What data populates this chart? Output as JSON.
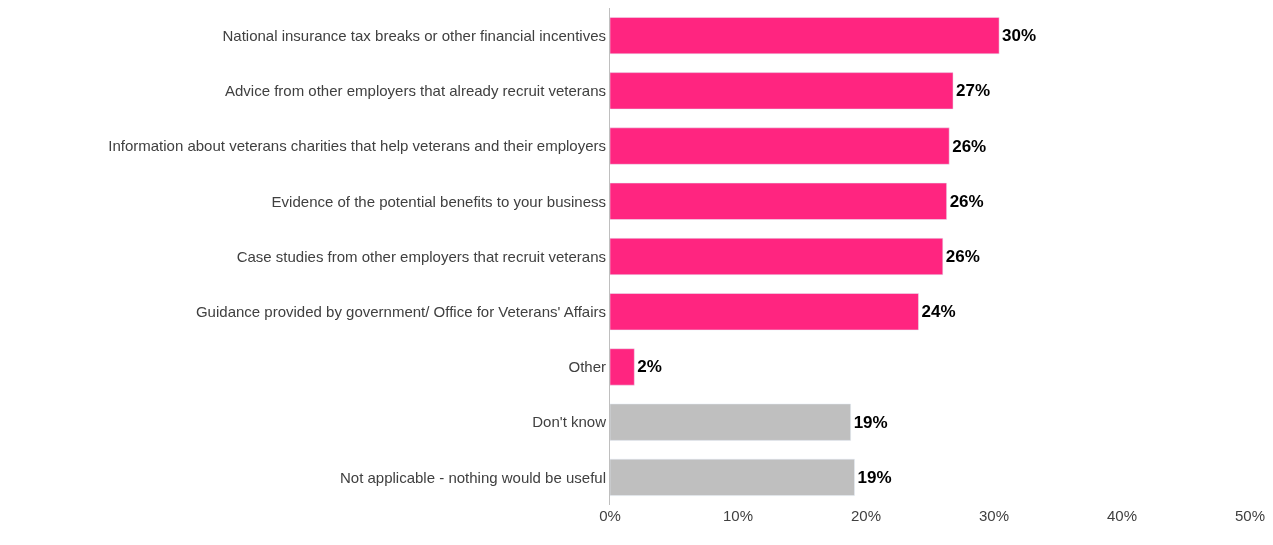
{
  "chart_data": {
    "type": "bar",
    "orientation": "horizontal",
    "categories": [
      "National insurance tax breaks or other financial incentives",
      "Advice from other employers that already recruit veterans",
      "Information about veterans charities that help veterans and their employers",
      "Evidence of the potential benefits to your business",
      "Case studies from other employers that recruit veterans",
      "Guidance provided by government/ Office for Veterans' Affairs",
      "Other",
      "Don't know",
      "Not applicable - nothing would be useful"
    ],
    "values": [
      30.4,
      26.8,
      26.5,
      26.3,
      26.0,
      24.1,
      1.9,
      18.8,
      19.1
    ],
    "value_labels": [
      "30%",
      "27%",
      "26%",
      "26%",
      "26%",
      "24%",
      "2%",
      "19%",
      "19%"
    ],
    "colors": [
      "#ff2580",
      "#ff2580",
      "#ff2580",
      "#ff2580",
      "#ff2580",
      "#ff2580",
      "#ff2580",
      "#bfbfbf",
      "#bfbfbf"
    ],
    "xlim": [
      0,
      50
    ],
    "xticks": [
      {
        "value": 0,
        "label": "0%"
      },
      {
        "value": 10,
        "label": "10%"
      },
      {
        "value": 20,
        "label": "20%"
      },
      {
        "value": 30,
        "label": "30%"
      },
      {
        "value": 40,
        "label": "40%"
      },
      {
        "value": 50,
        "label": "50%"
      }
    ],
    "grid": false,
    "legend": false
  }
}
